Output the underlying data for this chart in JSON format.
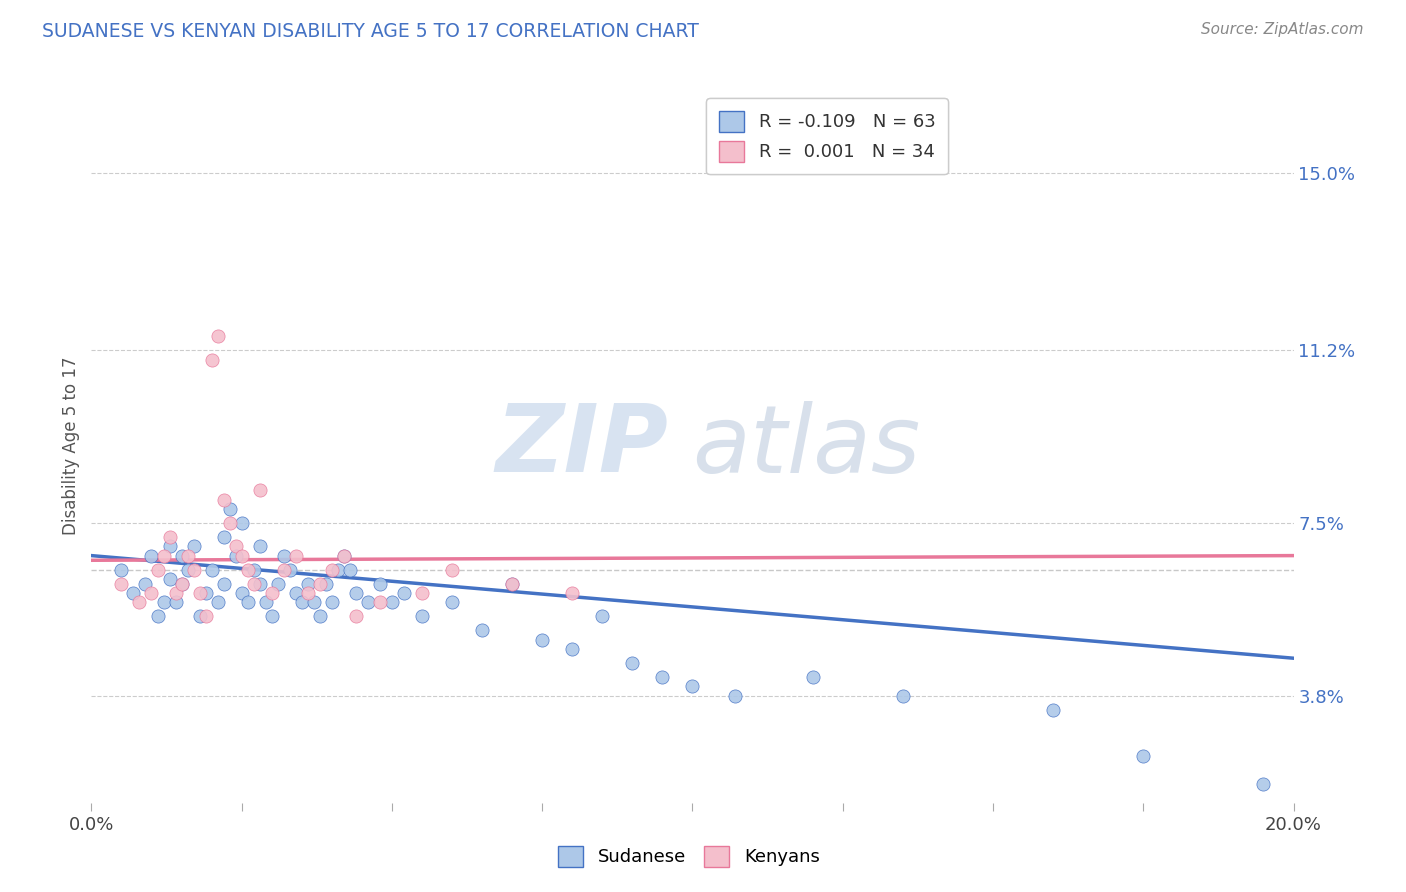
{
  "title": "SUDANESE VS KENYAN DISABILITY AGE 5 TO 17 CORRELATION CHART",
  "source": "Source: ZipAtlas.com",
  "ylabel": "Disability Age 5 to 17",
  "ytick_labels": [
    "15.0%",
    "11.2%",
    "7.5%",
    "3.8%"
  ],
  "ytick_values": [
    0.15,
    0.112,
    0.075,
    0.038
  ],
  "xlim": [
    0.0,
    0.2
  ],
  "ylim": [
    0.015,
    0.168
  ],
  "hline_y": 0.065,
  "color_sudanese": "#adc8e8",
  "color_kenyans": "#f4bfcc",
  "color_line_sudanese": "#4472c4",
  "color_line_kenyans": "#e8789a",
  "color_hline": "#c8c8c8",
  "watermark_zip": "ZIP",
  "watermark_atlas": "atlas",
  "bottom_legend_sudanese": "Sudanese",
  "bottom_legend_kenyans": "Kenyans",
  "legend_r1_label": "R = -0.109   N = 63",
  "legend_r2_label": "R =  0.001   N = 34",
  "sudanese_x": [
    0.005,
    0.007,
    0.009,
    0.01,
    0.011,
    0.012,
    0.013,
    0.013,
    0.014,
    0.015,
    0.015,
    0.016,
    0.017,
    0.018,
    0.019,
    0.02,
    0.021,
    0.022,
    0.022,
    0.023,
    0.024,
    0.025,
    0.025,
    0.026,
    0.027,
    0.028,
    0.028,
    0.029,
    0.03,
    0.031,
    0.032,
    0.033,
    0.034,
    0.035,
    0.036,
    0.037,
    0.038,
    0.039,
    0.04,
    0.041,
    0.042,
    0.043,
    0.044,
    0.046,
    0.048,
    0.05,
    0.052,
    0.055,
    0.06,
    0.065,
    0.07,
    0.075,
    0.08,
    0.085,
    0.09,
    0.095,
    0.1,
    0.107,
    0.12,
    0.135,
    0.16,
    0.175,
    0.195
  ],
  "sudanese_y": [
    0.065,
    0.06,
    0.062,
    0.068,
    0.055,
    0.058,
    0.063,
    0.07,
    0.058,
    0.062,
    0.068,
    0.065,
    0.07,
    0.055,
    0.06,
    0.065,
    0.058,
    0.062,
    0.072,
    0.078,
    0.068,
    0.075,
    0.06,
    0.058,
    0.065,
    0.062,
    0.07,
    0.058,
    0.055,
    0.062,
    0.068,
    0.065,
    0.06,
    0.058,
    0.062,
    0.058,
    0.055,
    0.062,
    0.058,
    0.065,
    0.068,
    0.065,
    0.06,
    0.058,
    0.062,
    0.058,
    0.06,
    0.055,
    0.058,
    0.052,
    0.062,
    0.05,
    0.048,
    0.055,
    0.045,
    0.042,
    0.04,
    0.038,
    0.042,
    0.038,
    0.035,
    0.025,
    0.019
  ],
  "kenyans_x": [
    0.005,
    0.008,
    0.01,
    0.011,
    0.012,
    0.013,
    0.014,
    0.015,
    0.016,
    0.017,
    0.018,
    0.019,
    0.02,
    0.021,
    0.022,
    0.023,
    0.024,
    0.025,
    0.026,
    0.027,
    0.028,
    0.03,
    0.032,
    0.034,
    0.036,
    0.038,
    0.04,
    0.042,
    0.044,
    0.048,
    0.055,
    0.06,
    0.07,
    0.08
  ],
  "kenyans_y": [
    0.062,
    0.058,
    0.06,
    0.065,
    0.068,
    0.072,
    0.06,
    0.062,
    0.068,
    0.065,
    0.06,
    0.055,
    0.11,
    0.115,
    0.08,
    0.075,
    0.07,
    0.068,
    0.065,
    0.062,
    0.082,
    0.06,
    0.065,
    0.068,
    0.06,
    0.062,
    0.065,
    0.068,
    0.055,
    0.058,
    0.06,
    0.065,
    0.062,
    0.06
  ],
  "trend_blue_x0": 0.0,
  "trend_blue_y0": 0.068,
  "trend_blue_x1": 0.2,
  "trend_blue_y1": 0.046,
  "trend_pink_x0": 0.0,
  "trend_pink_y0": 0.067,
  "trend_pink_x1": 0.2,
  "trend_pink_y1": 0.068
}
